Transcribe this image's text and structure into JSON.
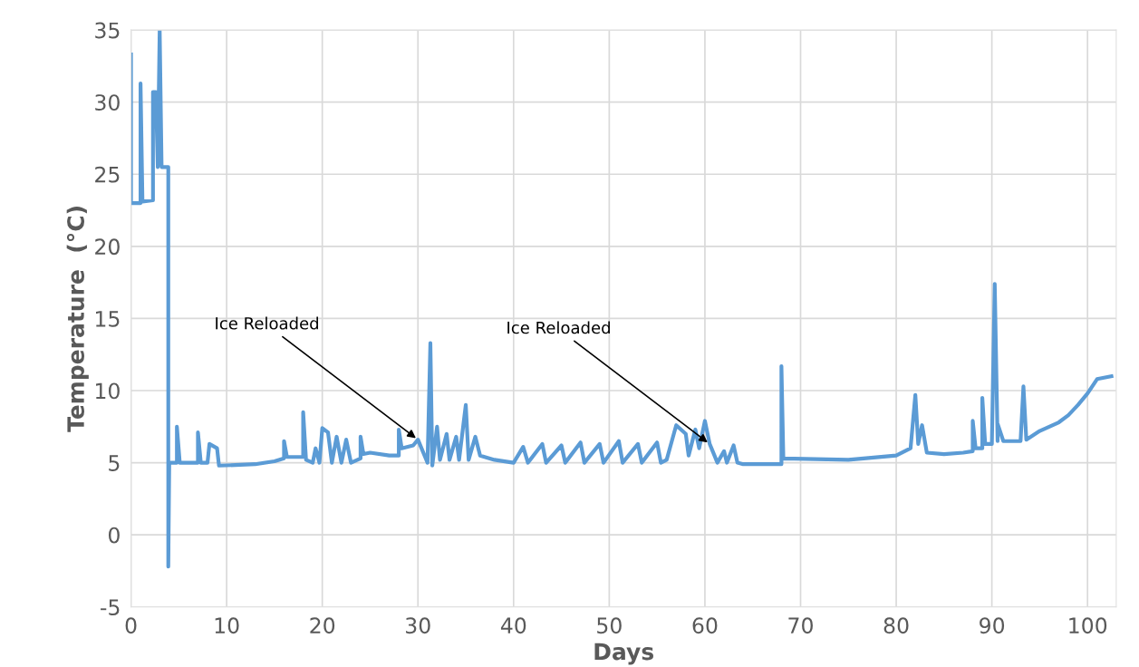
{
  "chart_data": {
    "type": "line",
    "xlabel": "Days",
    "ylabel": "Temperature  (°C)",
    "xlim": [
      0,
      103
    ],
    "ylim": [
      -5,
      35
    ],
    "xticks": [
      0,
      10,
      20,
      30,
      40,
      50,
      60,
      70,
      80,
      90,
      100
    ],
    "yticks": [
      -5,
      0,
      5,
      10,
      15,
      20,
      25,
      30,
      35
    ],
    "grid": true,
    "marker": "none",
    "line_style": "solid",
    "annotations": [
      {
        "text": "Ice Reloaded",
        "x": 30,
        "y": 6.6
      },
      {
        "text": "Ice Reloaded",
        "x": 60.5,
        "y": 6.3
      }
    ],
    "series": [
      {
        "color": "#5b9bd5",
        "x": [
          0,
          0,
          1,
          1,
          1.2,
          2.3,
          2.3,
          2.6,
          2.8,
          3,
          3.2,
          3.9,
          3.9,
          4.0,
          4.8,
          4.8,
          5.1,
          7,
          7,
          7.3,
          8,
          8.2,
          9,
          9.2,
          13,
          15,
          16,
          16,
          16.3,
          18,
          18,
          18.3,
          19,
          19.3,
          19.7,
          20,
          20.6,
          21,
          21.5,
          22,
          22.5,
          23,
          24,
          24,
          24.3,
          25,
          27,
          28,
          28,
          28.3,
          29.5,
          30,
          31,
          31.3,
          31.5,
          32,
          32.3,
          33,
          33.3,
          34,
          34.3,
          35,
          35.3,
          36,
          36.5,
          38,
          40,
          41,
          41.5,
          43,
          43.4,
          45,
          45.4,
          47,
          47.4,
          49,
          49.4,
          51,
          51.4,
          53,
          53.4,
          55,
          55.4,
          56,
          57,
          58,
          58.3,
          59,
          59.4,
          60,
          60.5,
          61,
          61.3,
          62,
          62.3,
          63,
          63.4,
          64,
          68,
          68,
          68.2,
          75,
          80,
          81.5,
          82,
          82.3,
          82.7,
          83.2,
          85,
          87,
          88,
          88,
          88.3,
          89,
          89,
          89.3,
          90,
          90.3,
          90.6,
          90.6,
          91.2,
          93,
          93.3,
          93.6,
          95,
          97,
          98,
          99,
          100,
          101,
          102.5
        ],
        "values": [
          33.3,
          23,
          23,
          31.3,
          23.1,
          23.2,
          30.7,
          30.7,
          25.5,
          35,
          25.5,
          25.5,
          -2.2,
          5.0,
          5.0,
          7.5,
          5.0,
          5.0,
          7.1,
          5.0,
          5.0,
          6.3,
          6.0,
          4.8,
          4.9,
          5.1,
          5.3,
          6.5,
          5.4,
          5.4,
          8.5,
          5.2,
          5.0,
          6.0,
          5.0,
          7.4,
          7.1,
          5.0,
          6.8,
          5.0,
          6.6,
          5.0,
          5.3,
          6.8,
          5.6,
          5.7,
          5.5,
          5.5,
          7.3,
          6.0,
          6.2,
          6.6,
          5.0,
          13.3,
          4.8,
          7.5,
          5.2,
          7.0,
          5.2,
          6.8,
          5.2,
          9.0,
          5.2,
          6.8,
          5.5,
          5.2,
          5.0,
          6.1,
          5.0,
          6.3,
          5.0,
          6.2,
          5.0,
          6.4,
          5.0,
          6.3,
          5.0,
          6.5,
          5.0,
          6.3,
          5.0,
          6.4,
          5.0,
          5.2,
          7.6,
          7.0,
          5.5,
          7.3,
          6.0,
          7.9,
          6.3,
          5.5,
          5.0,
          5.8,
          5.0,
          6.2,
          5.0,
          4.9,
          4.9,
          11.7,
          5.3,
          5.2,
          5.5,
          6.0,
          9.7,
          6.3,
          7.6,
          5.7,
          5.6,
          5.7,
          5.8,
          7.9,
          6.0,
          6.0,
          9.5,
          6.3,
          6.3,
          17.4,
          6.5,
          7.7,
          6.5,
          6.5,
          10.3,
          6.6,
          7.2,
          7.8,
          8.3,
          9.0,
          9.8,
          10.8,
          11.0
        ]
      }
    ]
  }
}
